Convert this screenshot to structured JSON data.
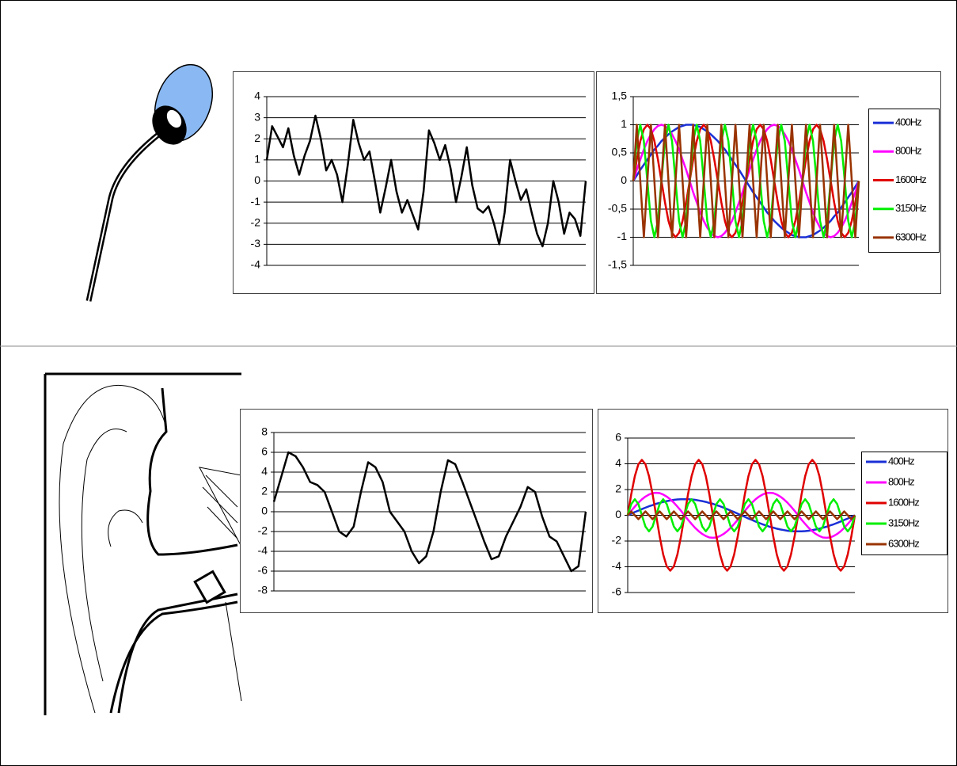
{
  "chart_data": [
    {
      "type": "line",
      "ylim": [
        -4,
        4
      ],
      "yticks": [
        -4,
        -3,
        -2,
        -1,
        0,
        1,
        2,
        3,
        4
      ],
      "grid": true,
      "color": "#000000",
      "categories": [
        null,
        null,
        null,
        null,
        null,
        null,
        null,
        null,
        null,
        null,
        null,
        null,
        null,
        null,
        null,
        null,
        null,
        null,
        null,
        null,
        null,
        null,
        null,
        null,
        null,
        null,
        null,
        null,
        null,
        null,
        null,
        null,
        null,
        null,
        null,
        null,
        null,
        null,
        null,
        null,
        null,
        null,
        null,
        null,
        null,
        null,
        null,
        null,
        null,
        null,
        null,
        null,
        null,
        null,
        null,
        null,
        null,
        null,
        null,
        null
      ],
      "values": [
        1,
        2.6,
        2.1,
        1.6,
        2.5,
        1.2,
        0.3,
        1.2,
        1.9,
        3.1,
        2,
        0.5,
        1,
        0.3,
        -1,
        0.8,
        2.9,
        1.8,
        1,
        1.4,
        0,
        -1.5,
        -0.3,
        1,
        -0.5,
        -1.5,
        -0.9,
        -1.6,
        -2.3,
        -0.5,
        2.4,
        1.8,
        1,
        1.7,
        0.6,
        -1,
        0.2,
        1.6,
        -0.2,
        -1.3,
        -1.5,
        -1.2,
        -2,
        -3,
        -1.5,
        1,
        0,
        -0.9,
        -0.4,
        -1.5,
        -2.5,
        -3.1,
        -2,
        0,
        -1,
        -2.5,
        -1.5,
        -1.8,
        -2.6,
        0
      ]
    },
    {
      "type": "line",
      "ylim": [
        -1.5,
        1.5
      ],
      "yticks": [
        {
          "value": -1.5,
          "label": "-1,5"
        },
        -1,
        {
          "value": -0.5,
          "label": "-0,5"
        },
        0,
        {
          "value": 0.5,
          "label": "0,5"
        },
        1,
        {
          "value": 1.5,
          "label": "1,5"
        }
      ],
      "grid": true,
      "legend": "right",
      "categories": [
        null,
        null,
        null,
        null,
        null,
        null,
        null,
        null,
        null,
        null,
        null,
        null,
        null,
        null,
        null,
        null,
        null,
        null,
        null,
        null,
        null,
        null,
        null,
        null,
        null,
        null,
        null,
        null,
        null,
        null,
        null,
        null,
        null,
        null,
        null,
        null,
        null,
        null,
        null,
        null,
        null,
        null,
        null,
        null,
        null,
        null,
        null,
        null,
        null,
        null,
        null,
        null,
        null,
        null,
        null,
        null,
        null,
        null,
        null,
        null,
        null,
        null,
        null,
        null,
        null
      ],
      "series": [
        {
          "name": "400Hz",
          "color": "#1a2fd6",
          "values": [
            0,
            0.1,
            0.2,
            0.29,
            0.38,
            0.47,
            0.56,
            0.63,
            0.71,
            0.77,
            0.83,
            0.88,
            0.92,
            0.96,
            0.98,
            1,
            1,
            1,
            0.98,
            0.96,
            0.92,
            0.88,
            0.83,
            0.77,
            0.71,
            0.63,
            0.56,
            0.47,
            0.38,
            0.29,
            0.2,
            0.1,
            0,
            -0.1,
            -0.2,
            -0.29,
            -0.38,
            -0.47,
            -0.56,
            -0.63,
            -0.71,
            -0.77,
            -0.83,
            -0.88,
            -0.92,
            -0.96,
            -0.98,
            -1,
            -1,
            -1,
            -0.98,
            -0.96,
            -0.92,
            -0.88,
            -0.83,
            -0.77,
            -0.71,
            -0.63,
            -0.56,
            -0.47,
            -0.38,
            -0.29,
            -0.2,
            -0.1,
            0
          ]
        },
        {
          "name": "800Hz",
          "color": "#ff00ff",
          "values": [
            0,
            0.2,
            0.38,
            0.56,
            0.71,
            0.83,
            0.92,
            0.98,
            1,
            0.98,
            0.92,
            0.83,
            0.71,
            0.56,
            0.38,
            0.2,
            0,
            -0.2,
            -0.38,
            -0.56,
            -0.71,
            -0.83,
            -0.92,
            -0.98,
            -1,
            -0.98,
            -0.92,
            -0.83,
            -0.71,
            -0.56,
            -0.38,
            -0.2,
            0,
            0.2,
            0.38,
            0.56,
            0.71,
            0.83,
            0.92,
            0.98,
            1,
            0.98,
            0.92,
            0.83,
            0.71,
            0.56,
            0.38,
            0.2,
            0,
            -0.2,
            -0.38,
            -0.56,
            -0.71,
            -0.83,
            -0.92,
            -0.98,
            -1,
            -0.98,
            -0.92,
            -0.83,
            -0.71,
            -0.56,
            -0.38,
            -0.2,
            0
          ]
        },
        {
          "name": "1600Hz",
          "color": "#e00000",
          "values": [
            0,
            0.38,
            0.71,
            0.92,
            1,
            0.92,
            0.71,
            0.38,
            0,
            -0.38,
            -0.71,
            -0.92,
            -1,
            -0.92,
            -0.71,
            -0.38,
            0,
            0.38,
            0.71,
            0.92,
            1,
            0.92,
            0.71,
            0.38,
            0,
            -0.38,
            -0.71,
            -0.92,
            -1,
            -0.92,
            -0.71,
            -0.38,
            0,
            0.38,
            0.71,
            0.92,
            1,
            0.92,
            0.71,
            0.38,
            0,
            -0.38,
            -0.71,
            -0.92,
            -1,
            -0.92,
            -0.71,
            -0.38,
            0,
            0.38,
            0.71,
            0.92,
            1,
            0.92,
            0.71,
            0.38,
            0,
            -0.38,
            -0.71,
            -0.92,
            -1,
            -0.92,
            -0.71,
            -0.38,
            0
          ]
        },
        {
          "name": "3150Hz",
          "color": "#00ee00",
          "values": [
            0,
            0.71,
            1,
            0.71,
            0,
            -0.71,
            -1,
            -0.71,
            0,
            0.71,
            1,
            0.71,
            0,
            -0.71,
            -1,
            -0.71,
            0,
            0.71,
            1,
            0.71,
            0,
            -0.71,
            -1,
            -0.71,
            0,
            0.71,
            1,
            0.71,
            0,
            -0.71,
            -1,
            -0.71,
            0,
            0.71,
            1,
            0.71,
            0,
            -0.71,
            -1,
            -0.71,
            0,
            0.71,
            1,
            0.71,
            0,
            -0.71,
            -1,
            -0.71,
            0,
            0.71,
            1,
            0.71,
            0,
            -0.71,
            -1,
            -0.71,
            0,
            0.71,
            1,
            0.71,
            0,
            -0.71,
            -1,
            -0.71,
            0
          ]
        },
        {
          "name": "6300Hz",
          "color": "#993300",
          "values": [
            0,
            1,
            0,
            -1,
            0,
            1,
            0,
            -1,
            0,
            1,
            0,
            -1,
            0,
            1,
            0,
            -1,
            0,
            1,
            0,
            -1,
            0,
            1,
            0,
            -1,
            0,
            1,
            0,
            -1,
            0,
            1,
            0,
            -1,
            0,
            1,
            0,
            -1,
            0,
            1,
            0,
            -1,
            0,
            1,
            0,
            -1,
            0,
            1,
            0,
            -1,
            0,
            1,
            0,
            -1,
            0,
            1,
            0,
            -1,
            0,
            1,
            0,
            -1,
            0,
            1,
            0,
            -1,
            0
          ]
        }
      ]
    },
    {
      "type": "line",
      "ylim": [
        -8,
        8
      ],
      "yticks": [
        -8,
        -6,
        -4,
        -2,
        0,
        2,
        4,
        6,
        8
      ],
      "grid": true,
      "color": "#000000",
      "categories": [
        null,
        null,
        null,
        null,
        null,
        null,
        null,
        null,
        null,
        null,
        null,
        null,
        null,
        null,
        null,
        null,
        null,
        null,
        null,
        null,
        null,
        null,
        null,
        null,
        null,
        null,
        null,
        null,
        null,
        null,
        null,
        null,
        null,
        null,
        null,
        null,
        null,
        null,
        null,
        null,
        null,
        null,
        null,
        null
      ],
      "values": [
        1,
        3.5,
        6,
        5.6,
        4.5,
        3,
        2.7,
        2,
        0,
        -2,
        -2.5,
        -1.5,
        2,
        5,
        4.5,
        3,
        0,
        -1,
        -2,
        -4,
        -5.2,
        -4.5,
        -2,
        2,
        5.2,
        4.8,
        3,
        1,
        -1,
        -3,
        -4.8,
        -4.5,
        -2.5,
        -1,
        0.5,
        2.5,
        2,
        -0.5,
        -2.5,
        -3,
        -4.5,
        -6,
        -5.5,
        0
      ]
    },
    {
      "type": "line",
      "ylim": [
        -6,
        6
      ],
      "yticks": [
        -6,
        -4,
        -2,
        0,
        2,
        4,
        6
      ],
      "grid": true,
      "legend": "right",
      "categories": [
        null,
        null,
        null,
        null,
        null,
        null,
        null,
        null,
        null,
        null,
        null,
        null,
        null,
        null,
        null,
        null,
        null,
        null,
        null,
        null,
        null,
        null,
        null,
        null,
        null,
        null,
        null,
        null,
        null,
        null,
        null,
        null,
        null,
        null,
        null,
        null,
        null,
        null,
        null,
        null,
        null,
        null,
        null,
        null,
        null,
        null,
        null,
        null,
        null,
        null,
        null,
        null,
        null,
        null,
        null,
        null,
        null,
        null,
        null,
        null,
        null,
        null,
        null,
        null,
        null
      ],
      "series": [
        {
          "name": "400Hz",
          "color": "#1a2fd6",
          "values": [
            0,
            0.12,
            0.25,
            0.36,
            0.48,
            0.59,
            0.7,
            0.79,
            0.89,
            0.96,
            1.04,
            1.1,
            1.15,
            1.2,
            1.23,
            1.25,
            1.25,
            1.25,
            1.23,
            1.2,
            1.15,
            1.1,
            1.04,
            0.96,
            0.89,
            0.79,
            0.7,
            0.59,
            0.48,
            0.36,
            0.25,
            0.12,
            0,
            -0.12,
            -0.25,
            -0.36,
            -0.48,
            -0.59,
            -0.7,
            -0.79,
            -0.89,
            -0.96,
            -1.04,
            -1.1,
            -1.15,
            -1.2,
            -1.23,
            -1.25,
            -1.25,
            -1.25,
            -1.23,
            -1.2,
            -1.15,
            -1.1,
            -1.04,
            -0.96,
            -0.89,
            -0.79,
            -0.7,
            -0.59,
            -0.48,
            -0.36,
            -0.25,
            -0.12,
            0
          ]
        },
        {
          "name": "800Hz",
          "color": "#ff00ff",
          "values": [
            0,
            0.35,
            0.67,
            0.98,
            1.24,
            1.45,
            1.61,
            1.72,
            1.75,
            1.72,
            1.61,
            1.45,
            1.24,
            0.98,
            0.67,
            0.35,
            0,
            -0.35,
            -0.67,
            -0.98,
            -1.24,
            -1.45,
            -1.61,
            -1.72,
            -1.75,
            -1.72,
            -1.61,
            -1.45,
            -1.24,
            -0.98,
            -0.67,
            -0.35,
            0,
            0.35,
            0.67,
            0.98,
            1.24,
            1.45,
            1.61,
            1.72,
            1.75,
            1.72,
            1.61,
            1.45,
            1.24,
            0.98,
            0.67,
            0.35,
            0,
            -0.35,
            -0.67,
            -0.98,
            -1.24,
            -1.45,
            -1.61,
            -1.72,
            -1.75,
            -1.72,
            -1.61,
            -1.45,
            -1.24,
            -0.98,
            -0.67,
            -0.35,
            0
          ]
        },
        {
          "name": "1600Hz",
          "color": "#e00000",
          "values": [
            0,
            1.65,
            3.04,
            3.97,
            4.3,
            3.97,
            3.04,
            1.65,
            0,
            -1.65,
            -3.04,
            -3.97,
            -4.3,
            -3.97,
            -3.04,
            -1.65,
            0,
            1.65,
            3.04,
            3.97,
            4.3,
            3.97,
            3.04,
            1.65,
            0,
            -1.65,
            -3.04,
            -3.97,
            -4.3,
            -3.97,
            -3.04,
            -1.65,
            0,
            1.65,
            3.04,
            3.97,
            4.3,
            3.97,
            3.04,
            1.65,
            0,
            -1.65,
            -3.04,
            -3.97,
            -4.3,
            -3.97,
            -3.04,
            -1.65,
            0,
            1.65,
            3.04,
            3.97,
            4.3,
            3.97,
            3.04,
            1.65,
            0,
            -1.65,
            -3.04,
            -3.97,
            -4.3,
            -3.97,
            -3.04,
            -1.65,
            0
          ]
        },
        {
          "name": "3150Hz",
          "color": "#00ee00",
          "values": [
            0,
            0.88,
            1.25,
            0.88,
            0,
            -0.88,
            -1.25,
            -0.88,
            0,
            0.88,
            1.25,
            0.88,
            0,
            -0.88,
            -1.25,
            -0.88,
            0,
            0.88,
            1.25,
            0.88,
            0,
            -0.88,
            -1.25,
            -0.88,
            0,
            0.88,
            1.25,
            0.88,
            0,
            -0.88,
            -1.25,
            -0.88,
            0,
            0.88,
            1.25,
            0.88,
            0,
            -0.88,
            -1.25,
            -0.88,
            0,
            0.88,
            1.25,
            0.88,
            0,
            -0.88,
            -1.25,
            -0.88,
            0,
            0.88,
            1.25,
            0.88,
            0,
            -0.88,
            -1.25,
            -0.88,
            0,
            0.88,
            1.25,
            0.88,
            0,
            -0.88,
            -1.25,
            -0.88,
            0
          ]
        },
        {
          "name": "6300Hz",
          "color": "#993300",
          "values": [
            0,
            0.3,
            0,
            -0.3,
            0,
            0.3,
            0,
            -0.3,
            0,
            0.3,
            0,
            -0.3,
            0,
            0.3,
            0,
            -0.3,
            0,
            0.3,
            0,
            -0.3,
            0,
            0.3,
            0,
            -0.3,
            0,
            0.3,
            0,
            -0.3,
            0,
            0.3,
            0,
            -0.3,
            0,
            0.3,
            0,
            -0.3,
            0,
            0.3,
            0,
            -0.3,
            0,
            0.3,
            0,
            -0.3,
            0,
            0.3,
            0,
            -0.3,
            0,
            0.3,
            0,
            -0.3,
            0,
            0.3,
            0,
            -0.3,
            0,
            0.3,
            0,
            -0.3,
            0,
            0.3,
            0,
            -0.3,
            0
          ]
        }
      ]
    }
  ]
}
